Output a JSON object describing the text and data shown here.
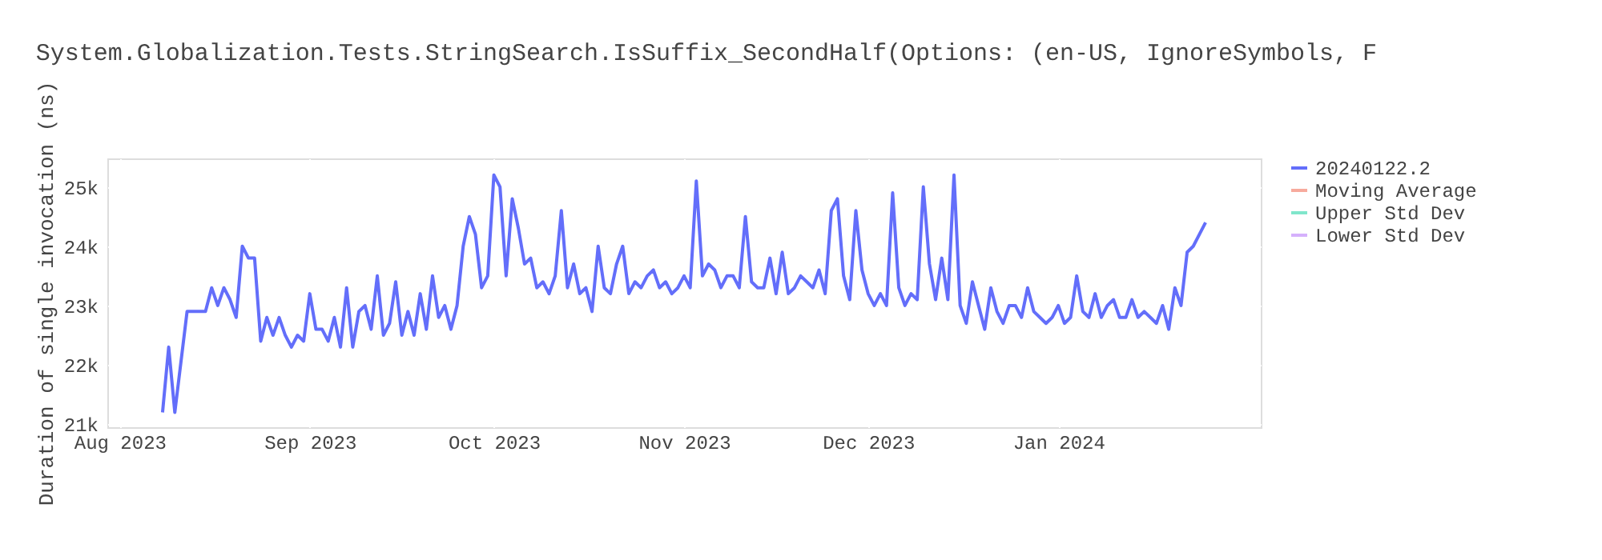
{
  "chart_data": {
    "type": "line",
    "title": "System.Globalization.Tests.StringSearch.IsSuffix_SecondHalf(Options: (en-US, IgnoreSymbols, F",
    "ylabel": "Duration of single invocation (ns)",
    "x": [
      "2023-08-08",
      "2023-08-09",
      "2023-08-10",
      "2023-08-12",
      "2023-08-13",
      "2023-08-15",
      "2023-08-16",
      "2023-08-17",
      "2023-08-18",
      "2023-08-19",
      "2023-08-20",
      "2023-08-21",
      "2023-08-22",
      "2023-08-23",
      "2023-08-24",
      "2023-08-25",
      "2023-08-26",
      "2023-08-27",
      "2023-08-28",
      "2023-08-29",
      "2023-08-30",
      "2023-08-31",
      "2023-09-01",
      "2023-09-02",
      "2023-09-03",
      "2023-09-04",
      "2023-09-05",
      "2023-09-06",
      "2023-09-07",
      "2023-09-08",
      "2023-09-09",
      "2023-09-10",
      "2023-09-11",
      "2023-09-12",
      "2023-09-13",
      "2023-09-14",
      "2023-09-15",
      "2023-09-16",
      "2023-09-17",
      "2023-09-18",
      "2023-09-19",
      "2023-09-20",
      "2023-09-21",
      "2023-09-22",
      "2023-09-23",
      "2023-09-24",
      "2023-09-25",
      "2023-09-26",
      "2023-09-27",
      "2023-09-28",
      "2023-09-29",
      "2023-09-30",
      "2023-10-01",
      "2023-10-02",
      "2023-10-03",
      "2023-10-04",
      "2023-10-05",
      "2023-10-06",
      "2023-10-07",
      "2023-10-08",
      "2023-10-09",
      "2023-10-10",
      "2023-10-11",
      "2023-10-12",
      "2023-10-13",
      "2023-10-14",
      "2023-10-15",
      "2023-10-16",
      "2023-10-17",
      "2023-10-18",
      "2023-10-19",
      "2023-10-20",
      "2023-10-21",
      "2023-10-22",
      "2023-10-23",
      "2023-10-24",
      "2023-10-25",
      "2023-10-26",
      "2023-10-27",
      "2023-10-28",
      "2023-10-29",
      "2023-10-30",
      "2023-10-31",
      "2023-11-01",
      "2023-11-02",
      "2023-11-03",
      "2023-11-04",
      "2023-11-05",
      "2023-11-06",
      "2023-11-07",
      "2023-11-08",
      "2023-11-09",
      "2023-11-10",
      "2023-11-11",
      "2023-11-12",
      "2023-11-13",
      "2023-11-14",
      "2023-11-15",
      "2023-11-16",
      "2023-11-17",
      "2023-11-18",
      "2023-11-19",
      "2023-11-20",
      "2023-11-21",
      "2023-11-22",
      "2023-11-23",
      "2023-11-24",
      "2023-11-25",
      "2023-11-26",
      "2023-11-27",
      "2023-11-28",
      "2023-11-29",
      "2023-11-30",
      "2023-12-01",
      "2023-12-02",
      "2023-12-03",
      "2023-12-04",
      "2023-12-05",
      "2023-12-06",
      "2023-12-07",
      "2023-12-08",
      "2023-12-09",
      "2023-12-10",
      "2023-12-11",
      "2023-12-12",
      "2023-12-13",
      "2023-12-14",
      "2023-12-15",
      "2023-12-16",
      "2023-12-17",
      "2023-12-18",
      "2023-12-19",
      "2023-12-20",
      "2023-12-21",
      "2023-12-22",
      "2023-12-23",
      "2023-12-24",
      "2023-12-25",
      "2023-12-26",
      "2023-12-27",
      "2023-12-28",
      "2023-12-29",
      "2023-12-30",
      "2023-12-31",
      "2024-01-01",
      "2024-01-02",
      "2024-01-03",
      "2024-01-04",
      "2024-01-05",
      "2024-01-06",
      "2024-01-07",
      "2024-01-08",
      "2024-01-09",
      "2024-01-10",
      "2024-01-11",
      "2024-01-12",
      "2024-01-13",
      "2024-01-14",
      "2024-01-15",
      "2024-01-16",
      "2024-01-17",
      "2024-01-18",
      "2024-01-19",
      "2024-01-20",
      "2024-01-21",
      "2024-01-22",
      "2024-01-23",
      "2024-01-24",
      "2024-01-25"
    ],
    "series": [
      {
        "name": "20240122.2",
        "color": "#636efa",
        "values": [
          21200,
          22300,
          21200,
          22900,
          22900,
          22900,
          23300,
          23000,
          23300,
          23100,
          22800,
          24000,
          23800,
          23800,
          22400,
          22800,
          22500,
          22800,
          22500,
          22300,
          22500,
          22400,
          23200,
          22600,
          22600,
          22400,
          22800,
          22300,
          23300,
          22300,
          22900,
          23000,
          22600,
          23500,
          22500,
          22700,
          23400,
          22500,
          22900,
          22500,
          23200,
          22600,
          23500,
          22800,
          23000,
          22600,
          23000,
          24000,
          24500,
          24200,
          23300,
          23500,
          25200,
          25000,
          23500,
          24800,
          24300,
          23700,
          23800,
          23300,
          23400,
          23200,
          23500,
          24600,
          23300,
          23700,
          23200,
          23300,
          22900,
          24000,
          23300,
          23200,
          23700,
          24000,
          23200,
          23400,
          23300,
          23500,
          23600,
          23300,
          23400,
          23200,
          23300,
          23500,
          23300,
          25100,
          23500,
          23700,
          23600,
          23300,
          23500,
          23500,
          23300,
          24500,
          23400,
          23300,
          23300,
          23800,
          23200,
          23900,
          23200,
          23300,
          23500,
          23400,
          23300,
          23600,
          23200,
          24600,
          24800,
          23500,
          23100,
          24600,
          23600,
          23200,
          23000,
          23200,
          23000,
          24900,
          23300,
          23000,
          23200,
          23100,
          25000,
          23700,
          23100,
          23800,
          23100,
          25200,
          23000,
          22700,
          23400,
          23000,
          22600,
          23300,
          22900,
          22700,
          23000,
          23000,
          22800,
          23300,
          22900,
          22800,
          22700,
          22800,
          23000,
          22700,
          22800,
          23500,
          22900,
          22800,
          23200,
          22800,
          23000,
          23100,
          22800,
          22800,
          23100,
          22800,
          22900,
          22800,
          22700,
          23000,
          22600,
          23300,
          23000,
          23900,
          24000,
          24200,
          24400
        ]
      },
      {
        "name": "Moving Average",
        "color": "#f7aa9d",
        "values": [
          null,
          null,
          null,
          null,
          null,
          null,
          null,
          null,
          null,
          null,
          null,
          null,
          null,
          null,
          null,
          null,
          null,
          null,
          null,
          null,
          null,
          null,
          null,
          null,
          null,
          null,
          null,
          null,
          null,
          null,
          null,
          null,
          null,
          null,
          null,
          null,
          null,
          null,
          null,
          null,
          null,
          null,
          null,
          null,
          null,
          null,
          null,
          null,
          null,
          null,
          null,
          null,
          null,
          null,
          null,
          null,
          null,
          null,
          null,
          null,
          null,
          null,
          null,
          null,
          null,
          null,
          null,
          null,
          null,
          null,
          null,
          null,
          null,
          null,
          null,
          null,
          null,
          null,
          null,
          null,
          null,
          null,
          null,
          null,
          null,
          null,
          null,
          null,
          null,
          null,
          null,
          null,
          null,
          null,
          null,
          null,
          null,
          null,
          null,
          null,
          null,
          null,
          null,
          null,
          null,
          null,
          null,
          null,
          null,
          null,
          null,
          null,
          null,
          null,
          null,
          null,
          null,
          null,
          null,
          null,
          null,
          null,
          null,
          null,
          null,
          null,
          null,
          null,
          null,
          null,
          null,
          null,
          null,
          null,
          null,
          null,
          null,
          null,
          null,
          null,
          null,
          null,
          null,
          null,
          null,
          null,
          null,
          null,
          null,
          null,
          null,
          null,
          null,
          null,
          null,
          null,
          null,
          null,
          null,
          null,
          null,
          null,
          null,
          null,
          null,
          null,
          null,
          null,
          null
        ]
      },
      {
        "name": "Upper Std Dev",
        "color": "#80e6cb",
        "values": [
          null,
          null,
          null,
          null,
          null,
          null,
          null,
          null,
          null,
          null,
          null,
          null,
          null,
          null,
          null,
          null,
          null,
          null,
          null,
          null,
          null,
          null,
          null,
          null,
          null,
          null,
          null,
          null,
          null,
          null,
          null,
          null,
          null,
          null,
          null,
          null,
          null,
          null,
          null,
          null,
          null,
          null,
          null,
          null,
          null,
          null,
          null,
          null,
          null,
          null,
          null,
          null,
          null,
          null,
          null,
          null,
          null,
          null,
          null,
          null,
          null,
          null,
          null,
          null,
          null,
          null,
          null,
          null,
          null,
          null,
          null,
          null,
          null,
          null,
          null,
          null,
          null,
          null,
          null,
          null,
          null,
          null,
          null,
          null,
          null,
          null,
          null,
          null,
          null,
          null,
          null,
          null,
          null,
          null,
          null,
          null,
          null,
          null,
          null,
          null,
          null,
          null,
          null,
          null,
          null,
          null,
          null,
          null,
          null,
          null,
          null,
          null,
          null,
          null,
          null,
          null,
          null,
          null,
          null,
          null,
          null,
          null,
          null,
          null,
          null,
          null,
          null,
          null,
          null,
          null,
          null,
          null,
          null,
          null,
          null,
          null,
          null,
          null,
          null,
          null,
          null,
          null,
          null,
          null,
          null,
          null,
          null,
          null,
          null,
          null,
          null,
          null,
          null,
          null,
          null,
          null,
          null,
          null,
          null,
          null,
          null,
          null,
          null,
          null,
          null,
          null,
          null,
          null,
          null
        ]
      },
      {
        "name": "Lower Std Dev",
        "color": "#d5b1fc",
        "values": [
          null,
          null,
          null,
          null,
          null,
          null,
          null,
          null,
          null,
          null,
          null,
          null,
          null,
          null,
          null,
          null,
          null,
          null,
          null,
          null,
          null,
          null,
          null,
          null,
          null,
          null,
          null,
          null,
          null,
          null,
          null,
          null,
          null,
          null,
          null,
          null,
          null,
          null,
          null,
          null,
          null,
          null,
          null,
          null,
          null,
          null,
          null,
          null,
          null,
          null,
          null,
          null,
          null,
          null,
          null,
          null,
          null,
          null,
          null,
          null,
          null,
          null,
          null,
          null,
          null,
          null,
          null,
          null,
          null,
          null,
          null,
          null,
          null,
          null,
          null,
          null,
          null,
          null,
          null,
          null,
          null,
          null,
          null,
          null,
          null,
          null,
          null,
          null,
          null,
          null,
          null,
          null,
          null,
          null,
          null,
          null,
          null,
          null,
          null,
          null,
          null,
          null,
          null,
          null,
          null,
          null,
          null,
          null,
          null,
          null,
          null,
          null,
          null,
          null,
          null,
          null,
          null,
          null,
          null,
          null,
          null,
          null,
          null,
          null,
          null,
          null,
          null,
          null,
          null,
          null,
          null,
          null,
          null,
          null,
          null,
          null,
          null,
          null,
          null,
          null,
          null,
          null,
          null,
          null,
          null,
          null,
          null,
          null,
          null,
          null,
          null,
          null,
          null,
          null,
          null,
          null,
          null,
          null,
          null,
          null,
          null,
          null,
          null,
          null,
          null,
          null,
          null,
          null,
          null
        ]
      }
    ],
    "xlim": [
      "2023-07-30",
      "2024-02-03"
    ],
    "xticks": [
      {
        "value": "2023-08-01",
        "label": "Aug 2023"
      },
      {
        "value": "2023-09-01",
        "label": "Sep 2023"
      },
      {
        "value": "2023-10-01",
        "label": "Oct 2023"
      },
      {
        "value": "2023-11-01",
        "label": "Nov 2023"
      },
      {
        "value": "2023-12-01",
        "label": "Dec 2023"
      },
      {
        "value": "2024-01-01",
        "label": "Jan 2024"
      }
    ],
    "ylim": [
      20950,
      25480
    ],
    "yticks": [
      {
        "value": 21000,
        "label": "21k"
      },
      {
        "value": 22000,
        "label": "22k"
      },
      {
        "value": 23000,
        "label": "23k"
      },
      {
        "value": 24000,
        "label": "24k"
      },
      {
        "value": 25000,
        "label": "25k"
      }
    ],
    "grid": true,
    "legend": "top right",
    "line_style": "solid"
  }
}
